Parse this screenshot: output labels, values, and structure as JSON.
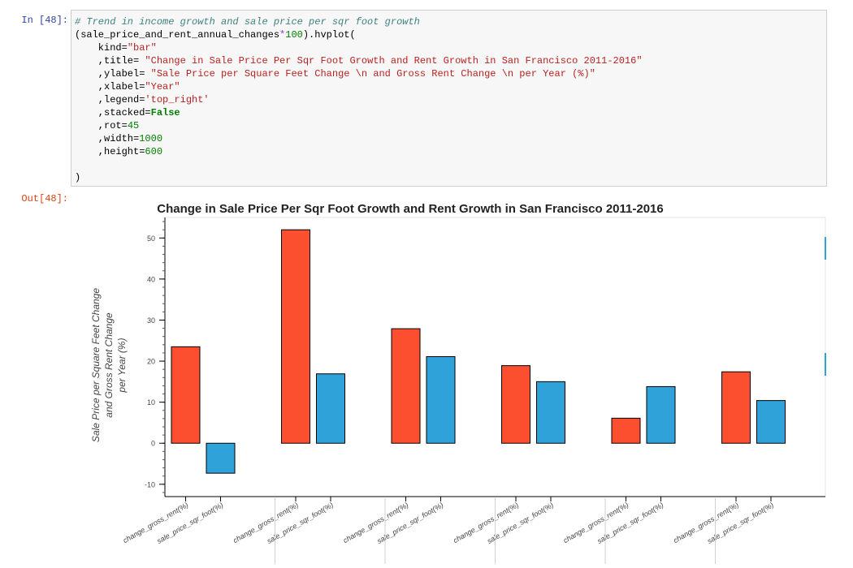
{
  "cell": {
    "in_prompt": "In [48]:",
    "out_prompt": "Out[48]:",
    "code": {
      "comment": "# Trend in income growth and sale price per sqr foot growth",
      "line2_a": "(sale_price_and_rent_annual_changes",
      "line2_op": "*",
      "line2_num": "100",
      "line2_b": ").hvplot(",
      "kind_key": "    kind=",
      "kind_val": "\"bar\"",
      "title_key": "    ,title= ",
      "title_val": "\"Change in Sale Price Per Sqr Foot Growth and Rent Growth in San Francisco 2011-2016\"",
      "ylabel_key": "    ,ylabel= ",
      "ylabel_val": "\"Sale Price per Square Feet Change \\n and Gross Rent Change \\n per Year (%)\"",
      "xlabel_key": "    ,xlabel=",
      "xlabel_val": "\"Year\"",
      "legend_key": "    ,legend=",
      "legend_val": "'top_right'",
      "stacked_key": "    ,stacked=",
      "stacked_val": "False",
      "rot_key": "    ,rot=",
      "rot_val": "45",
      "width_key": "    ,width=",
      "width_val": "1000",
      "height_key": "    ,height=",
      "height_val": "600",
      "close": ")"
    }
  },
  "colors": {
    "series_a": "#fc4f30",
    "series_b": "#30a2da"
  },
  "chart_data": {
    "type": "bar",
    "title": "Change in Sale Price Per Sqr Foot Growth and Rent Growth in San Francisco 2011-2016",
    "ylabel_lines": [
      "Sale Price per Square Feet Change",
      "and Gross Rent Change",
      "per Year (%)"
    ],
    "ylim": [
      -13,
      55
    ],
    "yticks": [
      -10,
      0,
      10,
      20,
      30,
      40,
      50
    ],
    "tick_labels": [
      "change_gross_rent(%)",
      "sale_price_sqr_foot(%)"
    ],
    "groups": [
      {
        "values": [
          23.5,
          -7.3
        ]
      },
      {
        "values": [
          52.0,
          16.9
        ]
      },
      {
        "values": [
          27.9,
          21.1
        ]
      },
      {
        "values": [
          18.9,
          15.0
        ]
      },
      {
        "values": [
          6.1,
          13.8
        ]
      },
      {
        "values": [
          17.4,
          10.4
        ]
      }
    ]
  }
}
